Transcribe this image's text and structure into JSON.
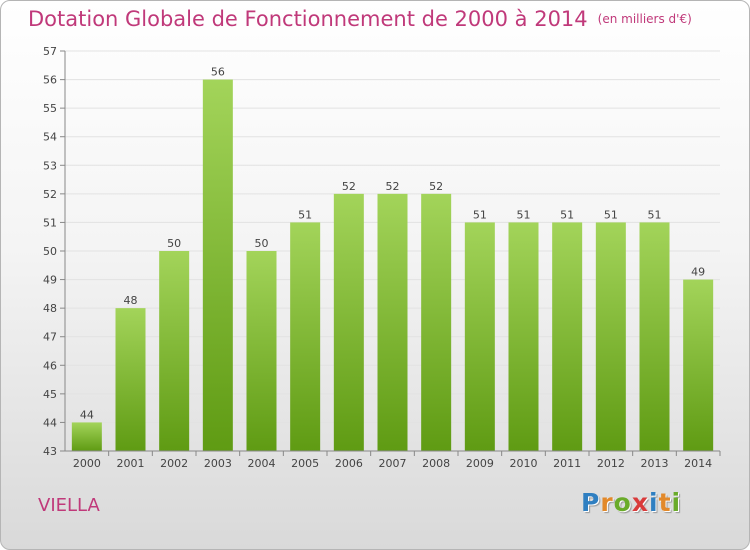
{
  "header": {
    "title": "Dotation Globale de Fonctionnement de 2000 à 2014",
    "unit": "(en milliers d'€)"
  },
  "footer": {
    "commune": "VIELLA",
    "logo": [
      {
        "ch": "P",
        "color": "#2f7fc1"
      },
      {
        "ch": "r",
        "color": "#e2892a"
      },
      {
        "ch": "o",
        "color": "#6aab2a"
      },
      {
        "ch": "x",
        "color": "#d93b3b"
      },
      {
        "ch": "i",
        "color": "#2f7fc1"
      },
      {
        "ch": "t",
        "color": "#e2892a"
      },
      {
        "ch": "i",
        "color": "#6aab2a"
      }
    ]
  },
  "colors": {
    "title": "#c0397a",
    "bar_light": "#a3d45a",
    "bar_dark": "#5f9b13",
    "grid": "#e2e2e2",
    "axis": "#888888"
  },
  "chart_data": {
    "type": "bar",
    "title": "Dotation Globale de Fonctionnement de 2000 à 2014",
    "subtitle": "(en milliers d'€)",
    "xlabel": "",
    "ylabel": "",
    "categories": [
      "2000",
      "2001",
      "2002",
      "2003",
      "2004",
      "2005",
      "2006",
      "2007",
      "2008",
      "2009",
      "2010",
      "2011",
      "2012",
      "2013",
      "2014"
    ],
    "values": [
      44,
      48,
      50,
      56,
      50,
      51,
      52,
      52,
      52,
      51,
      51,
      51,
      51,
      51,
      49
    ],
    "ylim": [
      43,
      57
    ],
    "yticks": [
      43,
      44,
      45,
      46,
      47,
      48,
      49,
      50,
      51,
      52,
      53,
      54,
      55,
      56,
      57
    ],
    "grid": true,
    "data_labels": true
  }
}
